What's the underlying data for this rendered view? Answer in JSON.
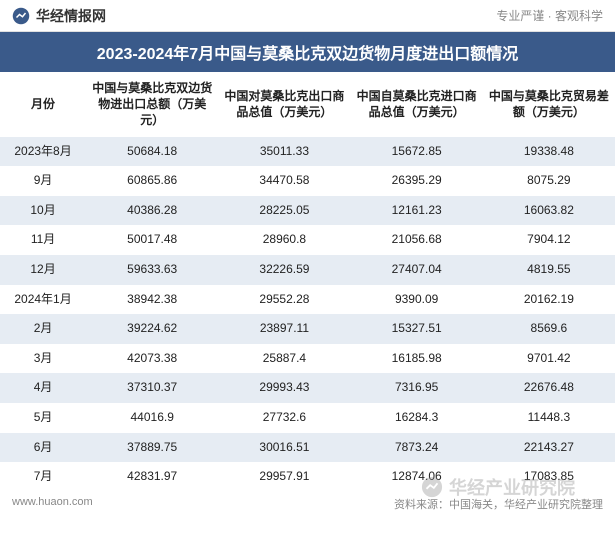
{
  "header": {
    "logo_text": "华经情报网",
    "slogan": "专业严谨 · 客观科学"
  },
  "title": "2023-2024年7月中国与莫桑比克双边货物月度进出口额情况",
  "table": {
    "columns": [
      "月份",
      "中国与莫桑比克双边货物进出口总额（万美元）",
      "中国对莫桑比克出口商品总值（万美元）",
      "中国自莫桑比克进口商品总值（万美元）",
      "中国与莫桑比克贸易差额（万美元）"
    ],
    "rows": [
      [
        "2023年8月",
        "50684.18",
        "35011.33",
        "15672.85",
        "19338.48"
      ],
      [
        "9月",
        "60865.86",
        "34470.58",
        "26395.29",
        "8075.29"
      ],
      [
        "10月",
        "40386.28",
        "28225.05",
        "12161.23",
        "16063.82"
      ],
      [
        "11月",
        "50017.48",
        "28960.8",
        "21056.68",
        "7904.12"
      ],
      [
        "12月",
        "59633.63",
        "32226.59",
        "27407.04",
        "4819.55"
      ],
      [
        "2024年1月",
        "38942.38",
        "29552.28",
        "9390.09",
        "20162.19"
      ],
      [
        "2月",
        "39224.62",
        "23897.11",
        "15327.51",
        "8569.6"
      ],
      [
        "3月",
        "42073.38",
        "25887.4",
        "16185.98",
        "9701.42"
      ],
      [
        "4月",
        "37310.37",
        "29993.43",
        "7316.95",
        "22676.48"
      ],
      [
        "5月",
        "44016.9",
        "27732.6",
        "16284.3",
        "11448.3"
      ],
      [
        "6月",
        "37889.75",
        "30016.51",
        "7873.24",
        "22143.27"
      ],
      [
        "7月",
        "42831.97",
        "29957.91",
        "12874.06",
        "17083.85"
      ]
    ]
  },
  "footer": {
    "website": "www.huaon.com",
    "source": "资料来源：中国海关，华经产业研究院整理"
  },
  "watermark": {
    "text": "华经产业研究院"
  },
  "colors": {
    "title_bg": "#3a5a8a",
    "title_fg": "#ffffff",
    "row_odd_bg": "#e6ecf3",
    "row_even_bg": "#ffffff",
    "text": "#222222",
    "muted": "#888888",
    "border": "#e0e0e0"
  },
  "fonts": {
    "title_size_pt": 16,
    "header_size_pt": 12,
    "cell_size_pt": 12,
    "footer_size_pt": 11
  }
}
